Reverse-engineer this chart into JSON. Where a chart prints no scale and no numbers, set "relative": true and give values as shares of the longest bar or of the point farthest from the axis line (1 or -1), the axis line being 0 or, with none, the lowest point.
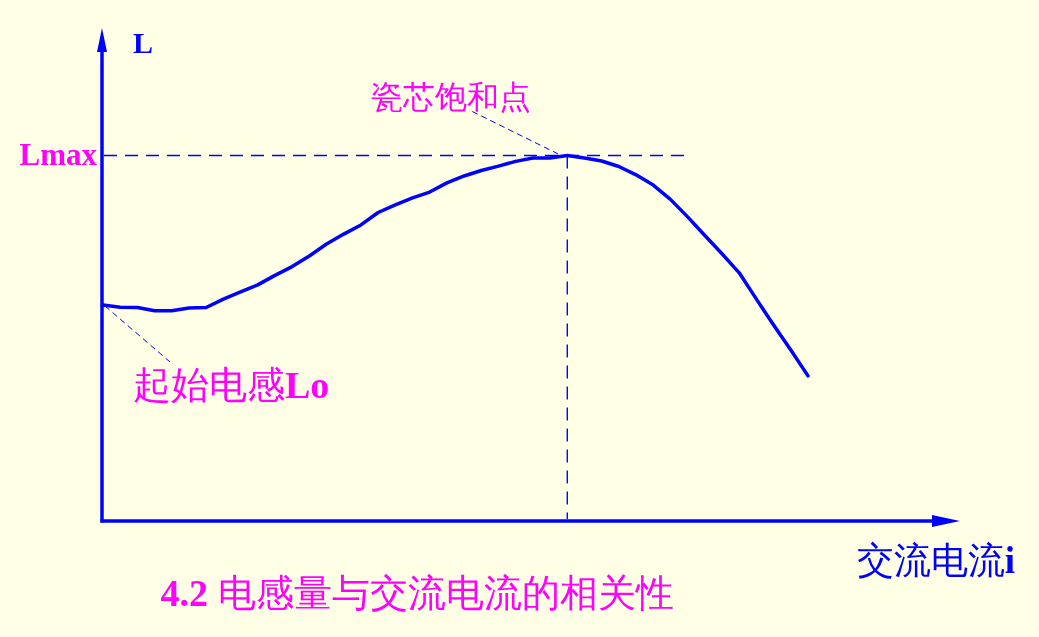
{
  "chart_data": {
    "type": "line",
    "title": "4.2 电感量与交流电流的相关性",
    "xlabel": "交流电流i",
    "ylabel": "L",
    "relative": true,
    "categories": [
      null,
      null,
      null,
      null,
      null,
      null,
      null,
      null,
      null,
      null,
      null,
      null,
      null,
      null,
      null,
      null,
      null,
      null,
      null,
      null,
      null,
      null,
      null,
      null,
      null,
      null,
      null,
      null,
      null,
      null,
      null,
      null,
      null,
      null,
      null,
      null,
      null,
      null,
      null,
      null,
      null,
      null
    ],
    "series": [
      {
        "color": "#0000ff",
        "values": [
          0.591,
          0.585,
          0.584,
          0.575,
          0.575,
          0.583,
          0.584,
          0.607,
          0.627,
          0.646,
          0.672,
          0.696,
          0.725,
          0.758,
          0.785,
          0.81,
          0.844,
          0.865,
          0.884,
          0.9,
          0.925,
          0.944,
          0.959,
          0.971,
          0.984,
          0.993,
          0.993,
          1,
          0.993,
          0.985,
          0.97,
          0.947,
          0.919,
          0.88,
          0.832,
          0.781,
          0.731,
          0.679,
          0.607,
          0.536,
          0.468,
          0.397
        ]
      }
    ],
    "ref_lines": [
      {
        "axis": "y",
        "value": 1,
        "label": "Lmax",
        "line_style": "dashed",
        "color": "#0000ff"
      }
    ],
    "annotations": [
      "起始电感Lo",
      {
        "text": "瓷芯饱和点",
        "y": 1
      }
    ]
  }
}
